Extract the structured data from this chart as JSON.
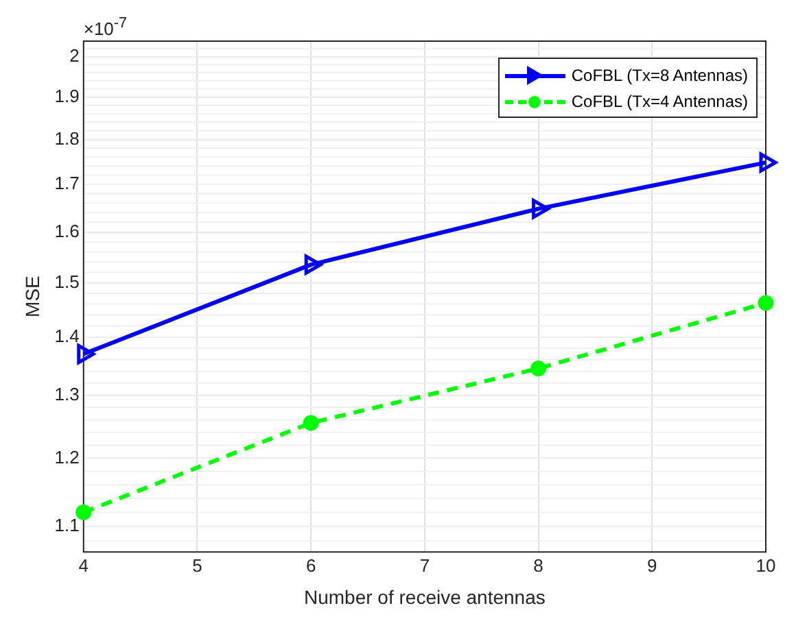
{
  "chart_data": {
    "type": "line",
    "xlabel": "Number of receive antennas",
    "ylabel": "MSE",
    "annotations": [
      "×10$^{-7}$"
    ],
    "x": [
      4,
      6,
      8,
      10
    ],
    "series": [
      {
        "name": "CoFBL (Tx=8 Antennas)",
        "color": "#0000ff",
        "values": [
          1.37,
          1.535,
          1.648,
          1.748
        ],
        "marker": "triangle",
        "line_style": "solid"
      },
      {
        "name": "CoFBL (Tx=4 Antennas)",
        "color": "#00ff00",
        "values": [
          1.12,
          1.255,
          1.345,
          1.462
        ],
        "marker": "circle",
        "line_style": "dashed"
      }
    ],
    "xlim": [
      4,
      10
    ],
    "xticks": [
      4,
      5,
      6,
      7,
      8,
      9,
      10
    ],
    "ylim": [
      1.065,
      2.04
    ],
    "yticks": [
      1.1,
      1.2,
      1.3,
      1.4,
      1.5,
      1.6,
      1.7,
      1.8,
      1.9,
      2
    ],
    "log": "y",
    "grid": true,
    "legend": "top right"
  }
}
